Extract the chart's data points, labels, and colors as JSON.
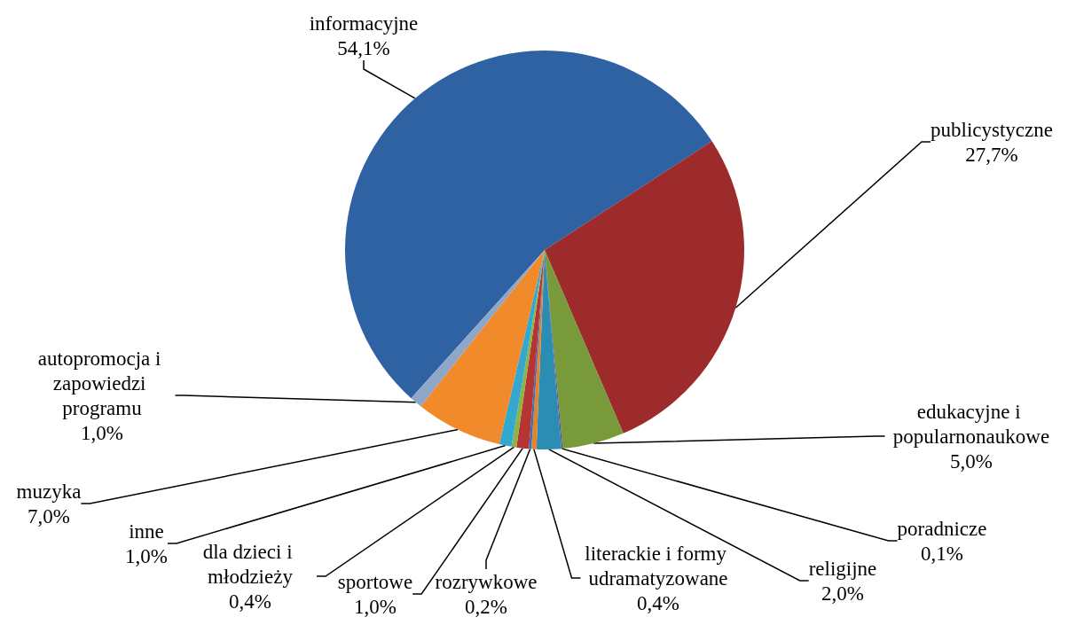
{
  "chart_data": {
    "type": "pie",
    "categories": [
      "informacyjne",
      "publicystyczne",
      "edukacyjne i popularnonaukowe",
      "poradnicze",
      "religijne",
      "literackie i formy udramatyzowane",
      "rozrywkowe",
      "sportowe",
      "dla dzieci i młodzieży",
      "inne",
      "muzyka",
      "autopromocja i zapowiedzi programu"
    ],
    "values": [
      54.1,
      27.7,
      5.0,
      0.1,
      2.0,
      0.4,
      0.2,
      1.0,
      0.4,
      1.0,
      7.0,
      1.0
    ],
    "value_labels": [
      "54,1%",
      "27,7%",
      "5,0%",
      "0,1%",
      "2,0%",
      "0,4%",
      "0,2%",
      "1,0%",
      "0,4%",
      "1,0%",
      "7,0%",
      "1,0%"
    ],
    "colors": [
      "#2f62a3",
      "#9e2b2b",
      "#789a3a",
      "#5e4a8e",
      "#2b8db3",
      "#e8822a",
      "#3b6fb6",
      "#b53535",
      "#8db443",
      "#35a8cf",
      "#f08a2b",
      "#8ea6c8"
    ]
  }
}
